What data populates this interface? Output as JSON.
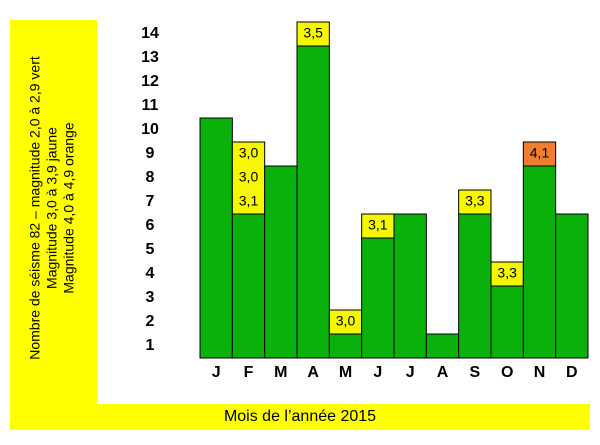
{
  "chart_data": {
    "type": "stacked-bar",
    "ylabel": [
      "Nombre de séisme 82 – magnitude 2,0 à 2,9 vert",
      "Magnitude 3,0 à 3,9 jaune",
      "Magnitude 4,0 à 4,9 orange"
    ],
    "xlabel": "Mois de l’année 2015",
    "categories": [
      "J",
      "F",
      "M",
      "A",
      "M",
      "J",
      "J",
      "A",
      "S",
      "O",
      "N",
      "D"
    ],
    "series": [
      {
        "color": "#0bb10b",
        "values": [
          10,
          6,
          8,
          13,
          1,
          5,
          6,
          1,
          6,
          3,
          8,
          6
        ]
      },
      {
        "color": "#f7f700",
        "values": [
          0,
          3,
          0,
          1,
          1,
          1,
          0,
          0,
          1,
          1,
          0,
          0
        ],
        "labels": [
          null,
          [
            "3,1",
            "3,0",
            "3,0"
          ],
          null,
          [
            "3,5"
          ],
          [
            "3,0"
          ],
          [
            "3,1"
          ],
          null,
          null,
          [
            "3,3"
          ],
          [
            "3,3"
          ],
          null,
          null
        ]
      },
      {
        "color": "#ef7f2f",
        "values": [
          0,
          0,
          0,
          0,
          0,
          0,
          0,
          0,
          0,
          0,
          1,
          0
        ],
        "labels": [
          null,
          null,
          null,
          null,
          null,
          null,
          null,
          null,
          null,
          null,
          [
            "4,1"
          ],
          null
        ]
      }
    ],
    "ylim": [
      0,
      14
    ],
    "yticks": [
      1,
      2,
      3,
      4,
      5,
      6,
      7,
      8,
      9,
      10,
      11,
      12,
      13,
      14
    ]
  }
}
